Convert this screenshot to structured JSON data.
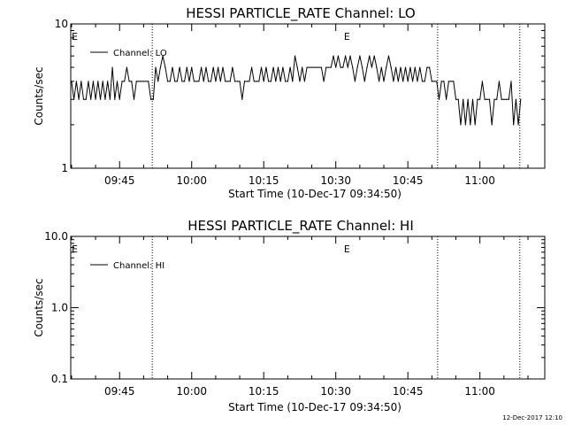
{
  "chart_data": [
    {
      "type": "line",
      "title": "HESSI PARTICLE_RATE Channel: LO",
      "xlabel": "Start Time (10-Dec-17 09:34:50)",
      "ylabel": "Counts/sec",
      "y_scale": "log",
      "ylim": [
        1,
        10
      ],
      "y_ticks": [
        "1",
        "10"
      ],
      "x_ticks": [
        "09:45",
        "10:00",
        "10:15",
        "10:30",
        "10:45",
        "11:00"
      ],
      "x_tick_minutes": [
        585,
        600,
        615,
        630,
        645,
        660
      ],
      "xlim_minutes": [
        574.83,
        673.5
      ],
      "legend": {
        "position": "top-left",
        "entries": [
          "Channel: LO"
        ]
      },
      "markers": [
        {
          "label": "E",
          "x_minutes": 574.83
        },
        {
          "label": "E",
          "x_minutes": 631.5
        }
      ],
      "vlines_minutes": [
        591.8,
        651.2,
        668.3
      ],
      "series": [
        {
          "name": "Channel: LO",
          "x_minutes": [
            575,
            575.5,
            576,
            576.5,
            577,
            577.5,
            578,
            578.5,
            579,
            579.5,
            580,
            580.5,
            581,
            581.5,
            582,
            582.5,
            583,
            583.5,
            584,
            584.5,
            585,
            585.5,
            586,
            586.5,
            587,
            587.5,
            588,
            588.5,
            589,
            589.5,
            590,
            590.5,
            591,
            591.5,
            592,
            592.5,
            593,
            593.5,
            594,
            594.5,
            595,
            595.5,
            596,
            596.5,
            597,
            597.5,
            598,
            598.5,
            599,
            599.5,
            600,
            600.5,
            601,
            601.5,
            602,
            602.5,
            603,
            603.5,
            604,
            604.5,
            605,
            605.5,
            606,
            606.5,
            607,
            607.5,
            608,
            608.5,
            609,
            609.5,
            610,
            610.5,
            611,
            611.5,
            612,
            612.5,
            613,
            613.5,
            614,
            614.5,
            615,
            615.5,
            616,
            616.5,
            617,
            617.5,
            618,
            618.5,
            619,
            619.5,
            620,
            620.5,
            621,
            621.5,
            622,
            622.5,
            623,
            623.5,
            624,
            624.5,
            625,
            625.5,
            626,
            626.5,
            627,
            627.5,
            628,
            628.5,
            629,
            629.5,
            630,
            630.5,
            631,
            631.5,
            632,
            632.5,
            633,
            633.5,
            634,
            634.5,
            635,
            635.5,
            636,
            636.5,
            637,
            637.5,
            638,
            638.5,
            639,
            639.5,
            640,
            640.5,
            641,
            641.5,
            642,
            642.5,
            643,
            643.5,
            644,
            644.5,
            645,
            645.5,
            646,
            646.5,
            647,
            647.5,
            648,
            648.5,
            649,
            649.5,
            650,
            650.5,
            651,
            651.5,
            652,
            652.5,
            653,
            653.5,
            654,
            654.5,
            655,
            655.5,
            656,
            656.5,
            657,
            657.5,
            658,
            658.5,
            659,
            659.5,
            660,
            660.5,
            661,
            661.5,
            662,
            662.5,
            663,
            663.5,
            664,
            664.5,
            665,
            665.5,
            666,
            666.5,
            667,
            667.5,
            668,
            668.5
          ],
          "values": [
            4,
            3,
            4,
            3,
            4,
            3,
            3,
            4,
            3,
            4,
            3,
            4,
            3,
            4,
            3,
            4,
            3,
            5,
            3,
            4,
            3,
            4,
            4,
            5,
            4,
            4,
            3,
            4,
            4,
            4,
            4,
            4,
            4,
            3,
            3,
            5,
            4,
            5,
            6,
            5,
            4,
            4,
            5,
            4,
            4,
            5,
            4,
            4,
            5,
            4,
            5,
            4,
            4,
            4,
            5,
            4,
            5,
            4,
            4,
            5,
            4,
            5,
            4,
            5,
            4,
            4,
            4,
            5,
            4,
            4,
            4,
            3,
            4,
            4,
            4,
            5,
            4,
            4,
            4,
            5,
            4,
            5,
            4,
            4,
            5,
            4,
            5,
            4,
            5,
            4,
            4,
            5,
            4,
            6,
            5,
            4,
            5,
            4,
            5,
            5,
            5,
            5,
            5,
            5,
            5,
            4,
            5,
            5,
            5,
            6,
            5,
            6,
            5,
            5,
            6,
            5,
            6,
            5,
            4,
            5,
            6,
            5,
            4,
            5,
            6,
            5,
            6,
            5,
            4,
            5,
            4,
            5,
            6,
            5,
            4,
            5,
            4,
            5,
            4,
            5,
            4,
            5,
            4,
            5,
            4,
            5,
            4,
            4,
            5,
            5,
            4,
            4,
            4,
            3,
            4,
            4,
            3,
            4,
            4,
            4,
            3,
            3,
            2,
            3,
            2,
            3,
            2,
            3,
            2,
            3,
            3,
            4,
            3,
            3,
            3,
            2,
            3,
            3,
            4,
            3,
            3,
            3,
            3,
            4,
            2,
            3,
            2,
            3
          ]
        }
      ]
    },
    {
      "type": "line",
      "title": "HESSI PARTICLE_RATE Channel: HI",
      "xlabel": "Start Time (10-Dec-17 09:34:50)",
      "ylabel": "Counts/sec",
      "y_scale": "log",
      "ylim": [
        0.1,
        10.0
      ],
      "y_ticks": [
        "0.1",
        "1.0",
        "10.0"
      ],
      "x_ticks": [
        "09:45",
        "10:00",
        "10:15",
        "10:30",
        "10:45",
        "11:00"
      ],
      "x_tick_minutes": [
        585,
        600,
        615,
        630,
        645,
        660
      ],
      "xlim_minutes": [
        574.83,
        673.5
      ],
      "legend": {
        "position": "top-left",
        "entries": [
          "Channel: HI"
        ]
      },
      "markers": [
        {
          "label": "E",
          "x_minutes": 574.83
        },
        {
          "label": "E",
          "x_minutes": 631.5
        }
      ],
      "vlines_minutes": [
        591.8,
        651.2,
        668.3
      ],
      "series": [
        {
          "name": "Channel: HI",
          "x_minutes": [],
          "values": []
        }
      ]
    }
  ],
  "footer": {
    "timestamp": "12-Dec-2017 12:10"
  }
}
